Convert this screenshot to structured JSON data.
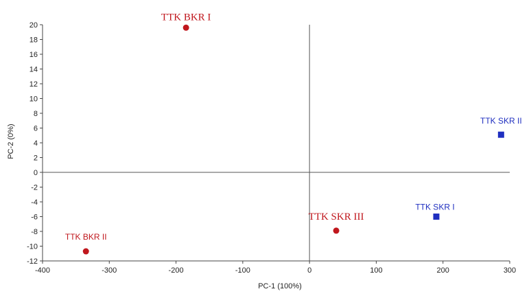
{
  "chart_data": {
    "type": "scatter",
    "xlabel": "PC-1 (100%)",
    "ylabel": "PC-2 (0%)",
    "xlim": [
      -400,
      300
    ],
    "ylim": [
      -12,
      20
    ],
    "x_ticks": [
      -400,
      -300,
      -200,
      -100,
      0,
      100,
      200,
      300
    ],
    "y_ticks": [
      -12,
      -10,
      -8,
      -6,
      -4,
      -2,
      0,
      2,
      4,
      6,
      8,
      10,
      12,
      14,
      16,
      18,
      20
    ],
    "grid": false,
    "points": [
      {
        "label": "TTK BKR I",
        "x": -185,
        "y": 19.6,
        "marker": "circle",
        "color": "#c0171d"
      },
      {
        "label": "TTK BKR II",
        "x": -335,
        "y": -10.7,
        "marker": "circle",
        "color": "#c0171d"
      },
      {
        "label": "TTK SKR III",
        "x": 40,
        "y": -7.9,
        "marker": "circle",
        "color": "#c0171d"
      },
      {
        "label": "TTK SKR II",
        "x": 287,
        "y": 5.1,
        "marker": "square",
        "color": "#1f2fc0"
      },
      {
        "label": "TTK SKR I",
        "x": 190,
        "y": -6.0,
        "marker": "square",
        "color": "#1f2fc0"
      }
    ]
  }
}
